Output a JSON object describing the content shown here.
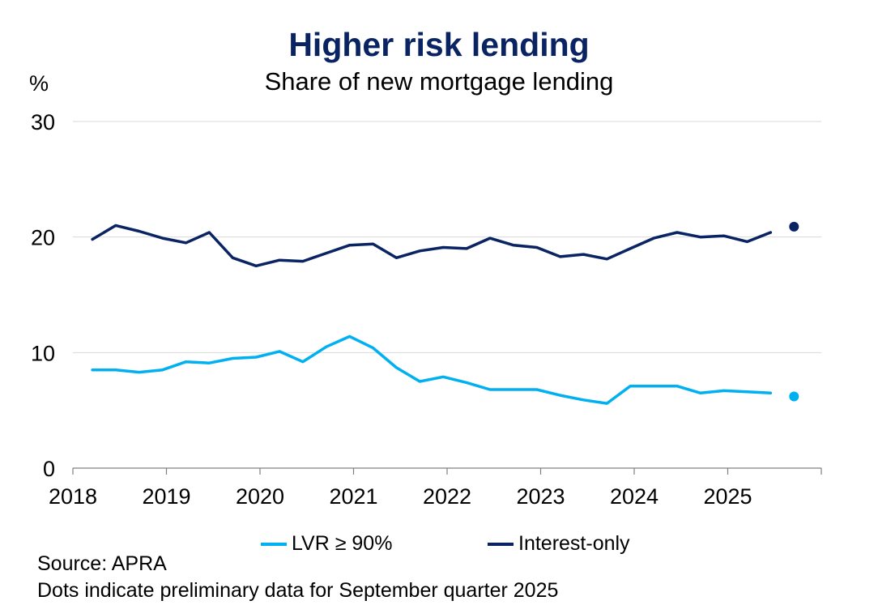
{
  "chart_data": {
    "type": "line",
    "title": "Higher risk lending",
    "subtitle": "Share of new mortgage lending",
    "ylabel": "%",
    "xlabel": "",
    "ylim": [
      0,
      30
    ],
    "yticks": [
      "0",
      "10",
      "20",
      "30"
    ],
    "xlim": [
      "2018",
      "2026"
    ],
    "xticks": [
      "2018",
      "2019",
      "2020",
      "2021",
      "2022",
      "2023",
      "2024",
      "2025"
    ],
    "grid": "horizontal",
    "legend_position": "bottom",
    "x": [
      "2018-03",
      "2018-06",
      "2018-09",
      "2018-12",
      "2019-03",
      "2019-06",
      "2019-09",
      "2019-12",
      "2020-03",
      "2020-06",
      "2020-09",
      "2020-12",
      "2021-03",
      "2021-06",
      "2021-09",
      "2021-12",
      "2022-03",
      "2022-06",
      "2022-09",
      "2022-12",
      "2023-03",
      "2023-06",
      "2023-09",
      "2023-12",
      "2024-03",
      "2024-06",
      "2024-09",
      "2024-12",
      "2025-03",
      "2025-06"
    ],
    "series": [
      {
        "name": "LVR ≥ 90%",
        "color": "#00b0f0",
        "values": [
          8.5,
          8.5,
          8.3,
          8.5,
          9.2,
          9.1,
          9.5,
          9.6,
          10.1,
          9.2,
          10.5,
          11.4,
          10.4,
          8.7,
          7.5,
          7.9,
          7.4,
          6.8,
          6.8,
          6.8,
          6.3,
          5.9,
          5.6,
          7.1,
          7.1,
          7.1,
          6.5,
          6.7,
          6.6,
          6.5
        ],
        "preliminary": {
          "x": "2025-09",
          "value": 6.2
        }
      },
      {
        "name": "Interest-only",
        "color": "#0a2463",
        "values": [
          19.8,
          21.0,
          20.5,
          19.9,
          19.5,
          20.4,
          18.2,
          17.5,
          18.0,
          17.9,
          18.6,
          19.3,
          19.4,
          18.2,
          18.8,
          19.1,
          19.0,
          19.9,
          19.3,
          19.1,
          18.3,
          18.5,
          18.1,
          19.0,
          19.9,
          20.4,
          20.0,
          20.1,
          19.6,
          20.4
        ],
        "preliminary": {
          "x": "2025-09",
          "value": 20.9
        }
      }
    ]
  },
  "notes": {
    "source": "Source: APRA",
    "dots": "Dots indicate preliminary data for September quarter 2025"
  }
}
